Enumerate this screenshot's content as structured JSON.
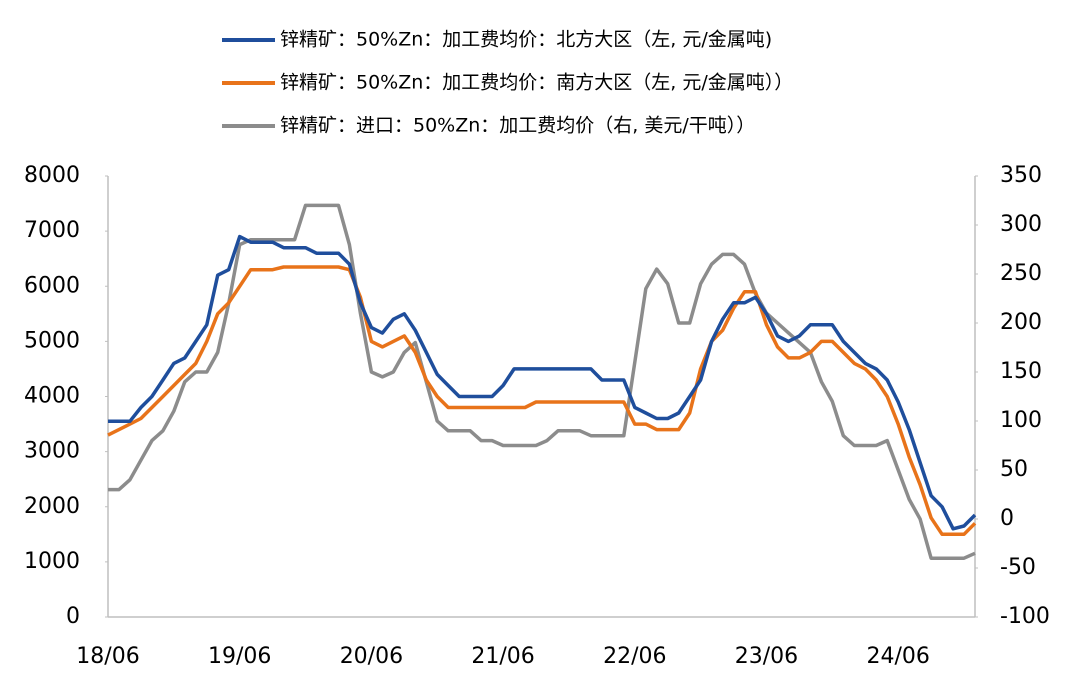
{
  "chart_data": {
    "type": "line",
    "categories": [
      "18/06",
      null,
      null,
      null,
      null,
      null,
      null,
      null,
      null,
      null,
      null,
      null,
      "19/06",
      null,
      null,
      null,
      null,
      null,
      null,
      null,
      null,
      null,
      null,
      null,
      "20/06",
      null,
      null,
      null,
      null,
      null,
      null,
      null,
      null,
      null,
      null,
      null,
      "21/06",
      null,
      null,
      null,
      null,
      null,
      null,
      null,
      null,
      null,
      null,
      null,
      "22/06",
      null,
      null,
      null,
      null,
      null,
      null,
      null,
      null,
      null,
      null,
      null,
      "23/06",
      null,
      null,
      null,
      null,
      null,
      null,
      null,
      null,
      null,
      null,
      null,
      "24/06",
      null,
      null,
      null,
      null,
      null,
      null,
      null
    ],
    "series": [
      {
        "name": "锌精矿：50%Zn：加工费均价：北方大区（左, 元/金属吨)",
        "color": "#1f4e9c",
        "values": [
          3550,
          3550,
          3550,
          3800,
          4000,
          4300,
          4600,
          4700,
          5000,
          5300,
          6200,
          6300,
          6900,
          6800,
          6800,
          6800,
          6700,
          6700,
          6700,
          6600,
          6600,
          6600,
          6400,
          5700,
          5250,
          5150,
          5400,
          5500,
          5200,
          4800,
          4400,
          4200,
          4000,
          4000,
          4000,
          4000,
          4200,
          4500,
          4500,
          4500,
          4500,
          4500,
          4500,
          4500,
          4500,
          4300,
          4300,
          4300,
          3800,
          3700,
          3600,
          3600,
          3700,
          4000,
          4300,
          5000,
          5400,
          5700,
          5700,
          5800,
          5500,
          5100,
          5000,
          5100,
          5300,
          5300,
          5300,
          5000,
          4800,
          4600,
          4500,
          4300,
          3900,
          3400,
          2800,
          2200,
          2000,
          1600,
          1650,
          1850
        ]
      },
      {
        "name": "锌精矿：50%Zn：加工费均价：南方大区（左, 元/金属吨））",
        "color": "#e8731a",
        "values": [
          3300,
          3400,
          3500,
          3600,
          3800,
          4000,
          4200,
          4400,
          4600,
          5000,
          5500,
          5700,
          6000,
          6300,
          6300,
          6300,
          6350,
          6350,
          6350,
          6350,
          6350,
          6350,
          6300,
          5800,
          5000,
          4900,
          5000,
          5100,
          4800,
          4300,
          4000,
          3800,
          3800,
          3800,
          3800,
          3800,
          3800,
          3800,
          3800,
          3900,
          3900,
          3900,
          3900,
          3900,
          3900,
          3900,
          3900,
          3900,
          3500,
          3500,
          3400,
          3400,
          3400,
          3700,
          4500,
          5000,
          5200,
          5600,
          5900,
          5900,
          5300,
          4900,
          4700,
          4700,
          4800,
          5000,
          5000,
          4800,
          4600,
          4500,
          4300,
          4000,
          3500,
          2900,
          2400,
          1800,
          1500,
          1500,
          1500,
          1700
        ]
      },
      {
        "name": "锌精矿：进口：50%Zn：加工费均价（右, 美元/干吨））",
        "color": "#8c8c8c",
        "axis": "y2",
        "values": [
          30,
          30,
          40,
          60,
          80,
          90,
          110,
          140,
          150,
          150,
          170,
          220,
          280,
          285,
          285,
          285,
          285,
          285,
          320,
          320,
          320,
          320,
          280,
          210,
          150,
          145,
          150,
          170,
          180,
          140,
          100,
          90,
          90,
          90,
          80,
          80,
          75,
          75,
          75,
          75,
          80,
          90,
          90,
          90,
          85,
          85,
          85,
          85,
          160,
          235,
          255,
          240,
          200,
          200,
          240,
          260,
          270,
          270,
          260,
          230,
          210,
          200,
          190,
          180,
          170,
          140,
          120,
          85,
          75,
          75,
          75,
          80,
          50,
          20,
          0,
          -40,
          -40,
          -40,
          -40,
          -35
        ]
      }
    ],
    "ylim": [
      0,
      8000
    ],
    "yticks": [
      0,
      1000,
      2000,
      3000,
      4000,
      5000,
      6000,
      7000,
      8000
    ],
    "y2lim": [
      -100,
      350
    ],
    "y2ticks": [
      -100,
      -50,
      0,
      50,
      100,
      150,
      200,
      250,
      300,
      350
    ]
  }
}
